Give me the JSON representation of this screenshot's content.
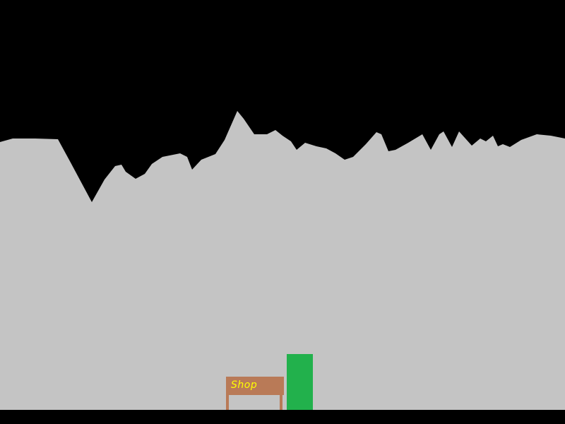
{
  "colors": {
    "sky": "#000000",
    "cave_rock": "#c4c4c4",
    "floor": "#000000",
    "shop_board": "#b97a57",
    "shop_text": "#ffff00",
    "player": "#22b14c"
  },
  "shop": {
    "label": "Shop"
  }
}
